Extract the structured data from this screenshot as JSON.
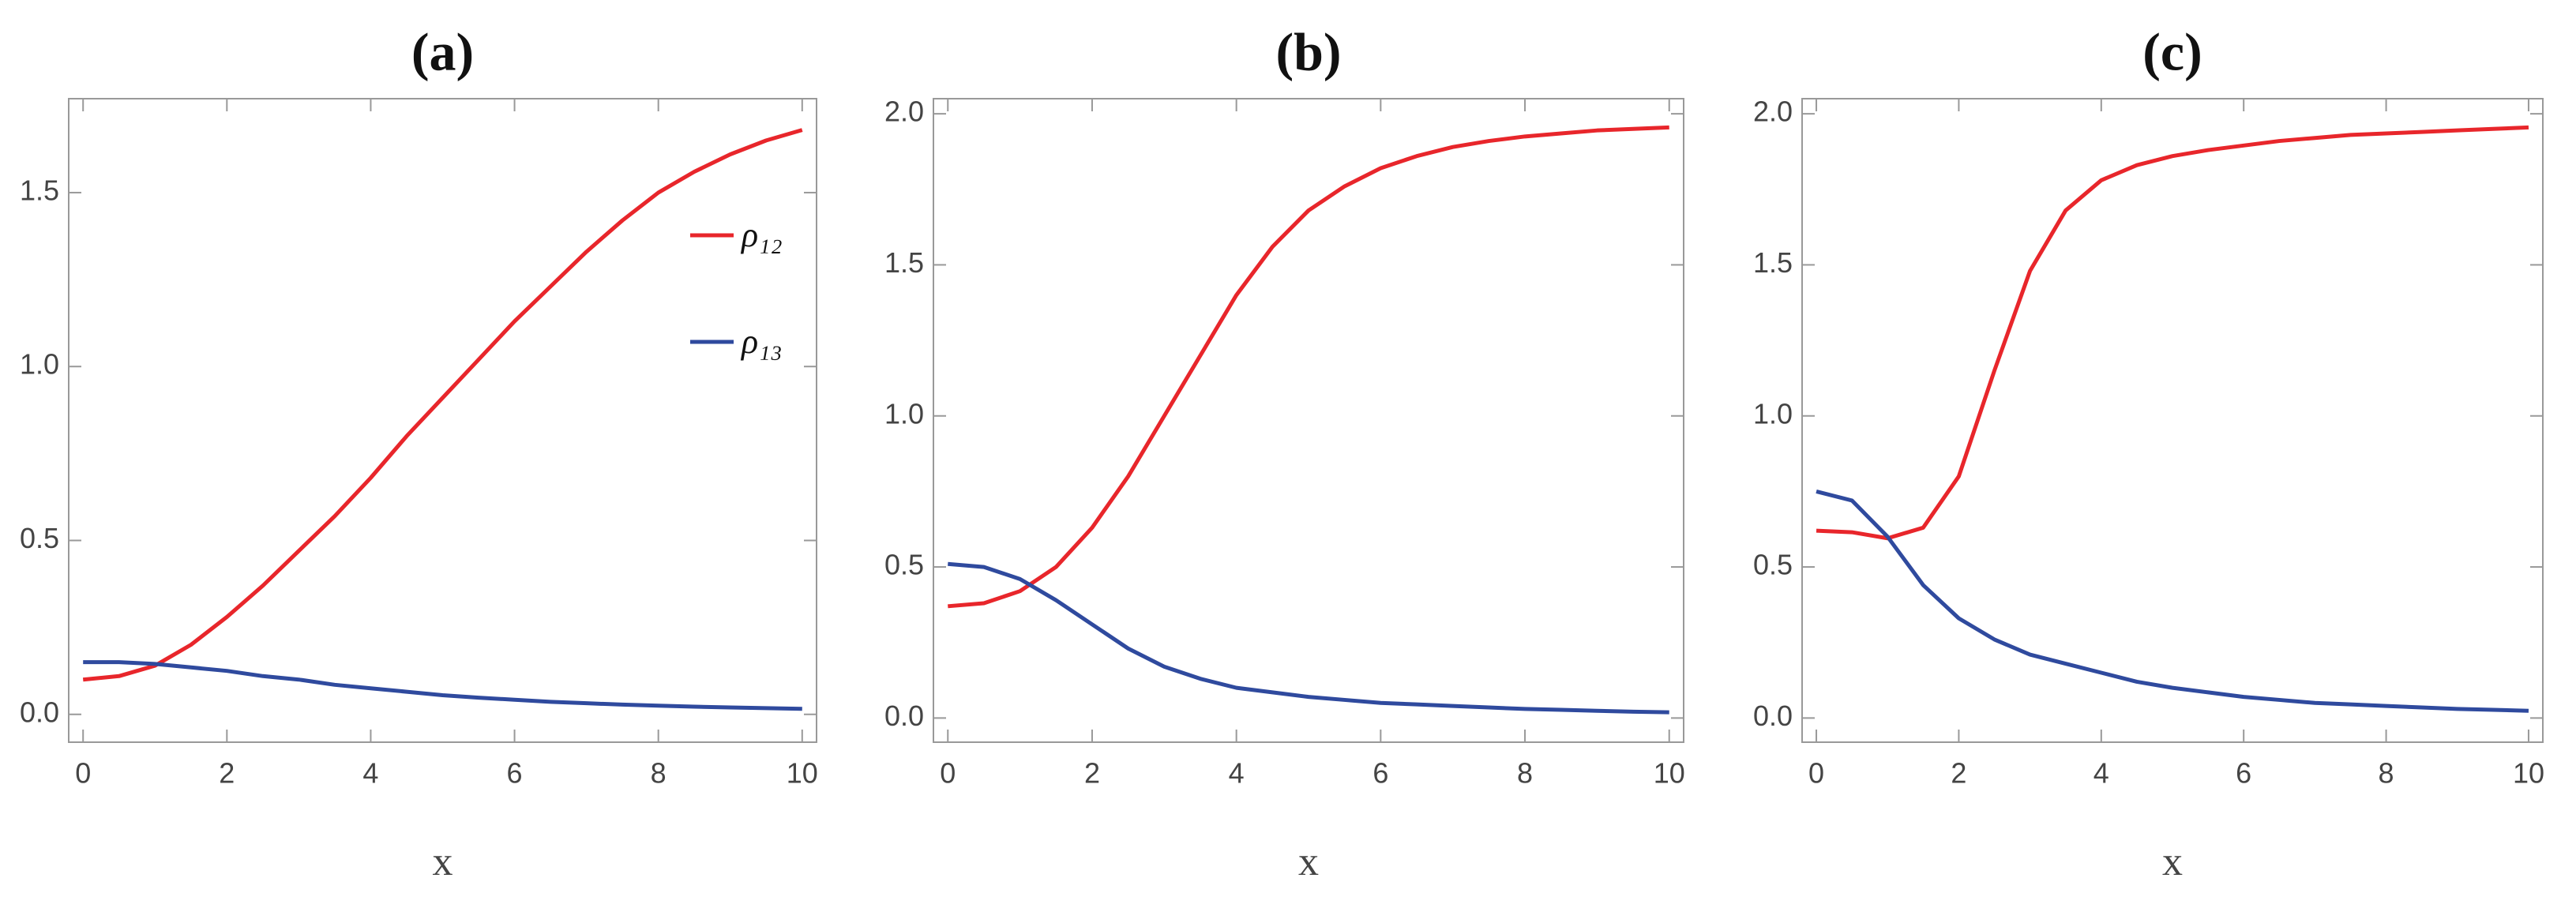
{
  "chart_data": [
    {
      "type": "line",
      "title": "(a)",
      "x_label": "x",
      "x": [
        0,
        0.5,
        1,
        1.5,
        2,
        2.5,
        3,
        3.5,
        4,
        4.5,
        5,
        5.5,
        6,
        6.5,
        7,
        7.5,
        8,
        8.5,
        9,
        9.5,
        10
      ],
      "series": [
        {
          "name": "ρ₁₂",
          "color": "#e8262b",
          "values": [
            0.1,
            0.11,
            0.14,
            0.2,
            0.28,
            0.37,
            0.47,
            0.57,
            0.68,
            0.8,
            0.91,
            1.02,
            1.13,
            1.23,
            1.33,
            1.42,
            1.5,
            1.56,
            1.61,
            1.65,
            1.68
          ]
        },
        {
          "name": "ρ₁₃",
          "color": "#2f4a9e",
          "values": [
            0.15,
            0.15,
            0.145,
            0.135,
            0.125,
            0.11,
            0.1,
            0.085,
            0.075,
            0.065,
            0.055,
            0.048,
            0.042,
            0.036,
            0.032,
            0.028,
            0.025,
            0.022,
            0.02,
            0.018,
            0.016
          ]
        }
      ],
      "legend": "upper right",
      "xlim": [
        -0.2,
        10.2
      ],
      "xticks": [
        0,
        2,
        4,
        6,
        8,
        10
      ],
      "ylim": [
        -0.08,
        1.77
      ],
      "yticks": [
        {
          "value": 0,
          "label": "0.0"
        },
        0.5,
        {
          "value": 1,
          "label": "1.0"
        },
        1.5
      ]
    },
    {
      "type": "line",
      "title": "(b)",
      "x_label": "x",
      "x": [
        0,
        0.5,
        1,
        1.5,
        2,
        2.5,
        3,
        3.5,
        4,
        4.5,
        5,
        5.5,
        6,
        6.5,
        7,
        7.5,
        8,
        8.5,
        9,
        9.5,
        10
      ],
      "series": [
        {
          "color": "#e8262b",
          "values": [
            0.37,
            0.38,
            0.42,
            0.5,
            0.63,
            0.8,
            1.0,
            1.2,
            1.4,
            1.56,
            1.68,
            1.76,
            1.82,
            1.86,
            1.89,
            1.91,
            1.925,
            1.935,
            1.945,
            1.95,
            1.955
          ]
        },
        {
          "color": "#2f4a9e",
          "values": [
            0.51,
            0.5,
            0.46,
            0.39,
            0.31,
            0.23,
            0.17,
            0.13,
            0.1,
            0.085,
            0.07,
            0.06,
            0.05,
            0.045,
            0.04,
            0.035,
            0.03,
            0.027,
            0.024,
            0.021,
            0.019
          ]
        }
      ],
      "xlim": [
        -0.2,
        10.2
      ],
      "xticks": [
        0,
        2,
        4,
        6,
        8,
        10
      ],
      "ylim": [
        -0.08,
        2.05
      ],
      "yticks": [
        {
          "value": 0,
          "label": "0.0"
        },
        0.5,
        {
          "value": 1,
          "label": "1.0"
        },
        1.5,
        {
          "value": 2,
          "label": "2.0"
        }
      ]
    },
    {
      "type": "line",
      "title": "(c)",
      "x_label": "x",
      "x": [
        0,
        0.5,
        1,
        1.5,
        2,
        2.5,
        3,
        3.5,
        4,
        4.5,
        5,
        5.5,
        6,
        6.5,
        7,
        7.5,
        8,
        8.5,
        9,
        9.5,
        10
      ],
      "series": [
        {
          "color": "#e8262b",
          "values": [
            0.62,
            0.615,
            0.595,
            0.63,
            0.8,
            1.15,
            1.48,
            1.68,
            1.78,
            1.83,
            1.86,
            1.88,
            1.895,
            1.91,
            1.92,
            1.93,
            1.935,
            1.94,
            1.945,
            1.95,
            1.955
          ]
        },
        {
          "color": "#2f4a9e",
          "values": [
            0.75,
            0.72,
            0.6,
            0.44,
            0.33,
            0.26,
            0.21,
            0.18,
            0.15,
            0.12,
            0.1,
            0.085,
            0.07,
            0.06,
            0.05,
            0.045,
            0.04,
            0.035,
            0.03,
            0.027,
            0.024
          ]
        }
      ],
      "xlim": [
        -0.2,
        10.2
      ],
      "xticks": [
        0,
        2,
        4,
        6,
        8,
        10
      ],
      "ylim": [
        -0.08,
        2.05
      ],
      "yticks": [
        {
          "value": 0,
          "label": "0.0"
        },
        0.5,
        {
          "value": 1,
          "label": "1.0"
        },
        1.5,
        {
          "value": 2,
          "label": "2.0"
        }
      ]
    }
  ]
}
